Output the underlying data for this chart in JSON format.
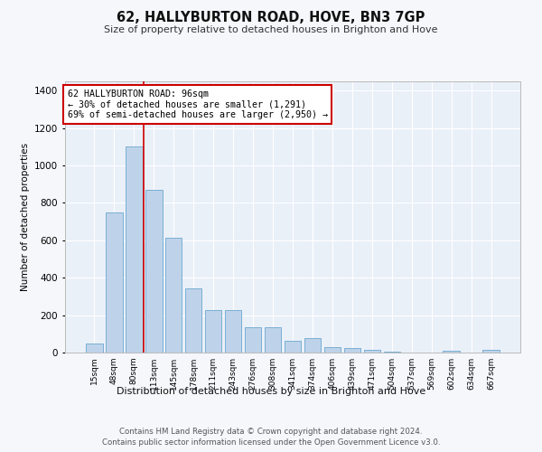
{
  "title": "62, HALLYBURTON ROAD, HOVE, BN3 7GP",
  "subtitle": "Size of property relative to detached houses in Brighton and Hove",
  "xlabel": "Distribution of detached houses by size in Brighton and Hove",
  "ylabel": "Number of detached properties",
  "categories": [
    "15sqm",
    "48sqm",
    "80sqm",
    "113sqm",
    "145sqm",
    "178sqm",
    "211sqm",
    "243sqm",
    "276sqm",
    "308sqm",
    "341sqm",
    "374sqm",
    "406sqm",
    "439sqm",
    "471sqm",
    "504sqm",
    "537sqm",
    "569sqm",
    "602sqm",
    "634sqm",
    "667sqm"
  ],
  "values": [
    50,
    750,
    1100,
    870,
    615,
    345,
    225,
    225,
    135,
    135,
    65,
    75,
    30,
    25,
    15,
    5,
    0,
    0,
    10,
    0,
    15
  ],
  "bar_color": "#bed3ea",
  "bar_edge_color": "#7aafd4",
  "background_color": "#eaf0f8",
  "grid_color": "#ffffff",
  "vline_color": "#cc0000",
  "vline_x_index": 2.5,
  "annotation_text": "62 HALLYBURTON ROAD: 96sqm\n← 30% of detached houses are smaller (1,291)\n69% of semi-detached houses are larger (2,950) →",
  "annotation_box_color": "#ffffff",
  "annotation_box_edge": "#cc0000",
  "ylim": [
    0,
    1450
  ],
  "yticks": [
    0,
    200,
    400,
    600,
    800,
    1000,
    1200,
    1400
  ],
  "footer1": "Contains HM Land Registry data © Crown copyright and database right 2024.",
  "footer2": "Contains public sector information licensed under the Open Government Licence v3.0."
}
